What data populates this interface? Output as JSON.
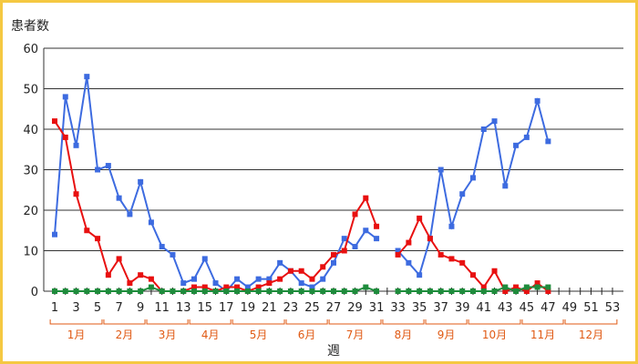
{
  "chart_data": {
    "type": "line",
    "ylabel": "患者数",
    "xlabel": "週",
    "ylim": [
      0,
      60
    ],
    "yticks": [
      0,
      10,
      20,
      30,
      40,
      50,
      60
    ],
    "xlim": [
      1,
      53
    ],
    "xtick_labels": [
      "1",
      "3",
      "5",
      "7",
      "9",
      "11",
      "13",
      "15",
      "17",
      "19",
      "21",
      "23",
      "25",
      "27",
      "29",
      "31",
      "33",
      "35",
      "37",
      "39",
      "41",
      "43",
      "45",
      "47",
      "49",
      "51",
      "53"
    ],
    "grid": "horizontal",
    "months": [
      {
        "label": "1月",
        "start": 1,
        "end": 5
      },
      {
        "label": "2月",
        "start": 6,
        "end": 9
      },
      {
        "label": "3月",
        "start": 10,
        "end": 13
      },
      {
        "label": "4月",
        "start": 14,
        "end": 17
      },
      {
        "label": "5月",
        "start": 18,
        "end": 22
      },
      {
        "label": "6月",
        "start": 23,
        "end": 26
      },
      {
        "label": "7月",
        "start": 27,
        "end": 31
      },
      {
        "label": "8月",
        "start": 32,
        "end": 35
      },
      {
        "label": "9月",
        "start": 36,
        "end": 39
      },
      {
        "label": "10月",
        "start": 40,
        "end": 44
      },
      {
        "label": "11月",
        "start": 45,
        "end": 48
      },
      {
        "label": "12月",
        "start": 49,
        "end": 53
      }
    ],
    "series": [
      {
        "color": "#3d6be0",
        "x": [
          1,
          2,
          3,
          4,
          5,
          6,
          7,
          8,
          9,
          10,
          11,
          12,
          13,
          14,
          15,
          16,
          17,
          18,
          19,
          20,
          21,
          22,
          23,
          24,
          25,
          26,
          27,
          28,
          29,
          30,
          31,
          33,
          34,
          35,
          36,
          37,
          38,
          39,
          40,
          41,
          42,
          43,
          44,
          45,
          46,
          47
        ],
        "values": [
          14,
          48,
          36,
          53,
          30,
          31,
          23,
          19,
          27,
          17,
          11,
          9,
          2,
          3,
          8,
          2,
          0,
          3,
          1,
          3,
          3,
          7,
          5,
          2,
          1,
          3,
          7,
          13,
          11,
          15,
          13,
          10,
          7,
          4,
          13,
          30,
          16,
          24,
          28,
          40,
          42,
          26,
          36,
          38,
          47,
          37
        ]
      },
      {
        "color": "#e81010",
        "x": [
          1,
          2,
          3,
          4,
          5,
          6,
          7,
          8,
          9,
          10,
          11,
          12,
          13,
          14,
          15,
          16,
          17,
          18,
          19,
          20,
          21,
          22,
          23,
          24,
          25,
          26,
          27,
          28,
          29,
          30,
          31,
          33,
          34,
          35,
          36,
          37,
          38,
          39,
          40,
          41,
          42,
          43,
          44,
          45,
          46,
          47
        ],
        "values": [
          42,
          38,
          24,
          15,
          13,
          4,
          8,
          2,
          4,
          3,
          0,
          0,
          0,
          1,
          1,
          0,
          1,
          1,
          0,
          1,
          2,
          3,
          5,
          5,
          3,
          6,
          9,
          10,
          19,
          23,
          16,
          9,
          12,
          18,
          13,
          9,
          8,
          7,
          4,
          1,
          5,
          0,
          1,
          0,
          2,
          0
        ]
      },
      {
        "color": "#1e8c3c",
        "x": [
          1,
          2,
          3,
          4,
          5,
          6,
          7,
          8,
          9,
          10,
          11,
          12,
          13,
          14,
          15,
          16,
          17,
          18,
          19,
          20,
          21,
          22,
          23,
          24,
          25,
          26,
          27,
          28,
          29,
          30,
          31,
          33,
          34,
          35,
          36,
          37,
          38,
          39,
          40,
          41,
          42,
          43,
          44,
          45,
          46,
          47
        ],
        "values": [
          0,
          0,
          0,
          0,
          0,
          0,
          0,
          0,
          0,
          1,
          0,
          0,
          0,
          0,
          0,
          0,
          0,
          0,
          0,
          0,
          0,
          0,
          0,
          0,
          0,
          0,
          0,
          0,
          0,
          1,
          0,
          0,
          0,
          0,
          0,
          0,
          0,
          0,
          0,
          0,
          0,
          1,
          0,
          1,
          1,
          1
        ]
      }
    ]
  }
}
